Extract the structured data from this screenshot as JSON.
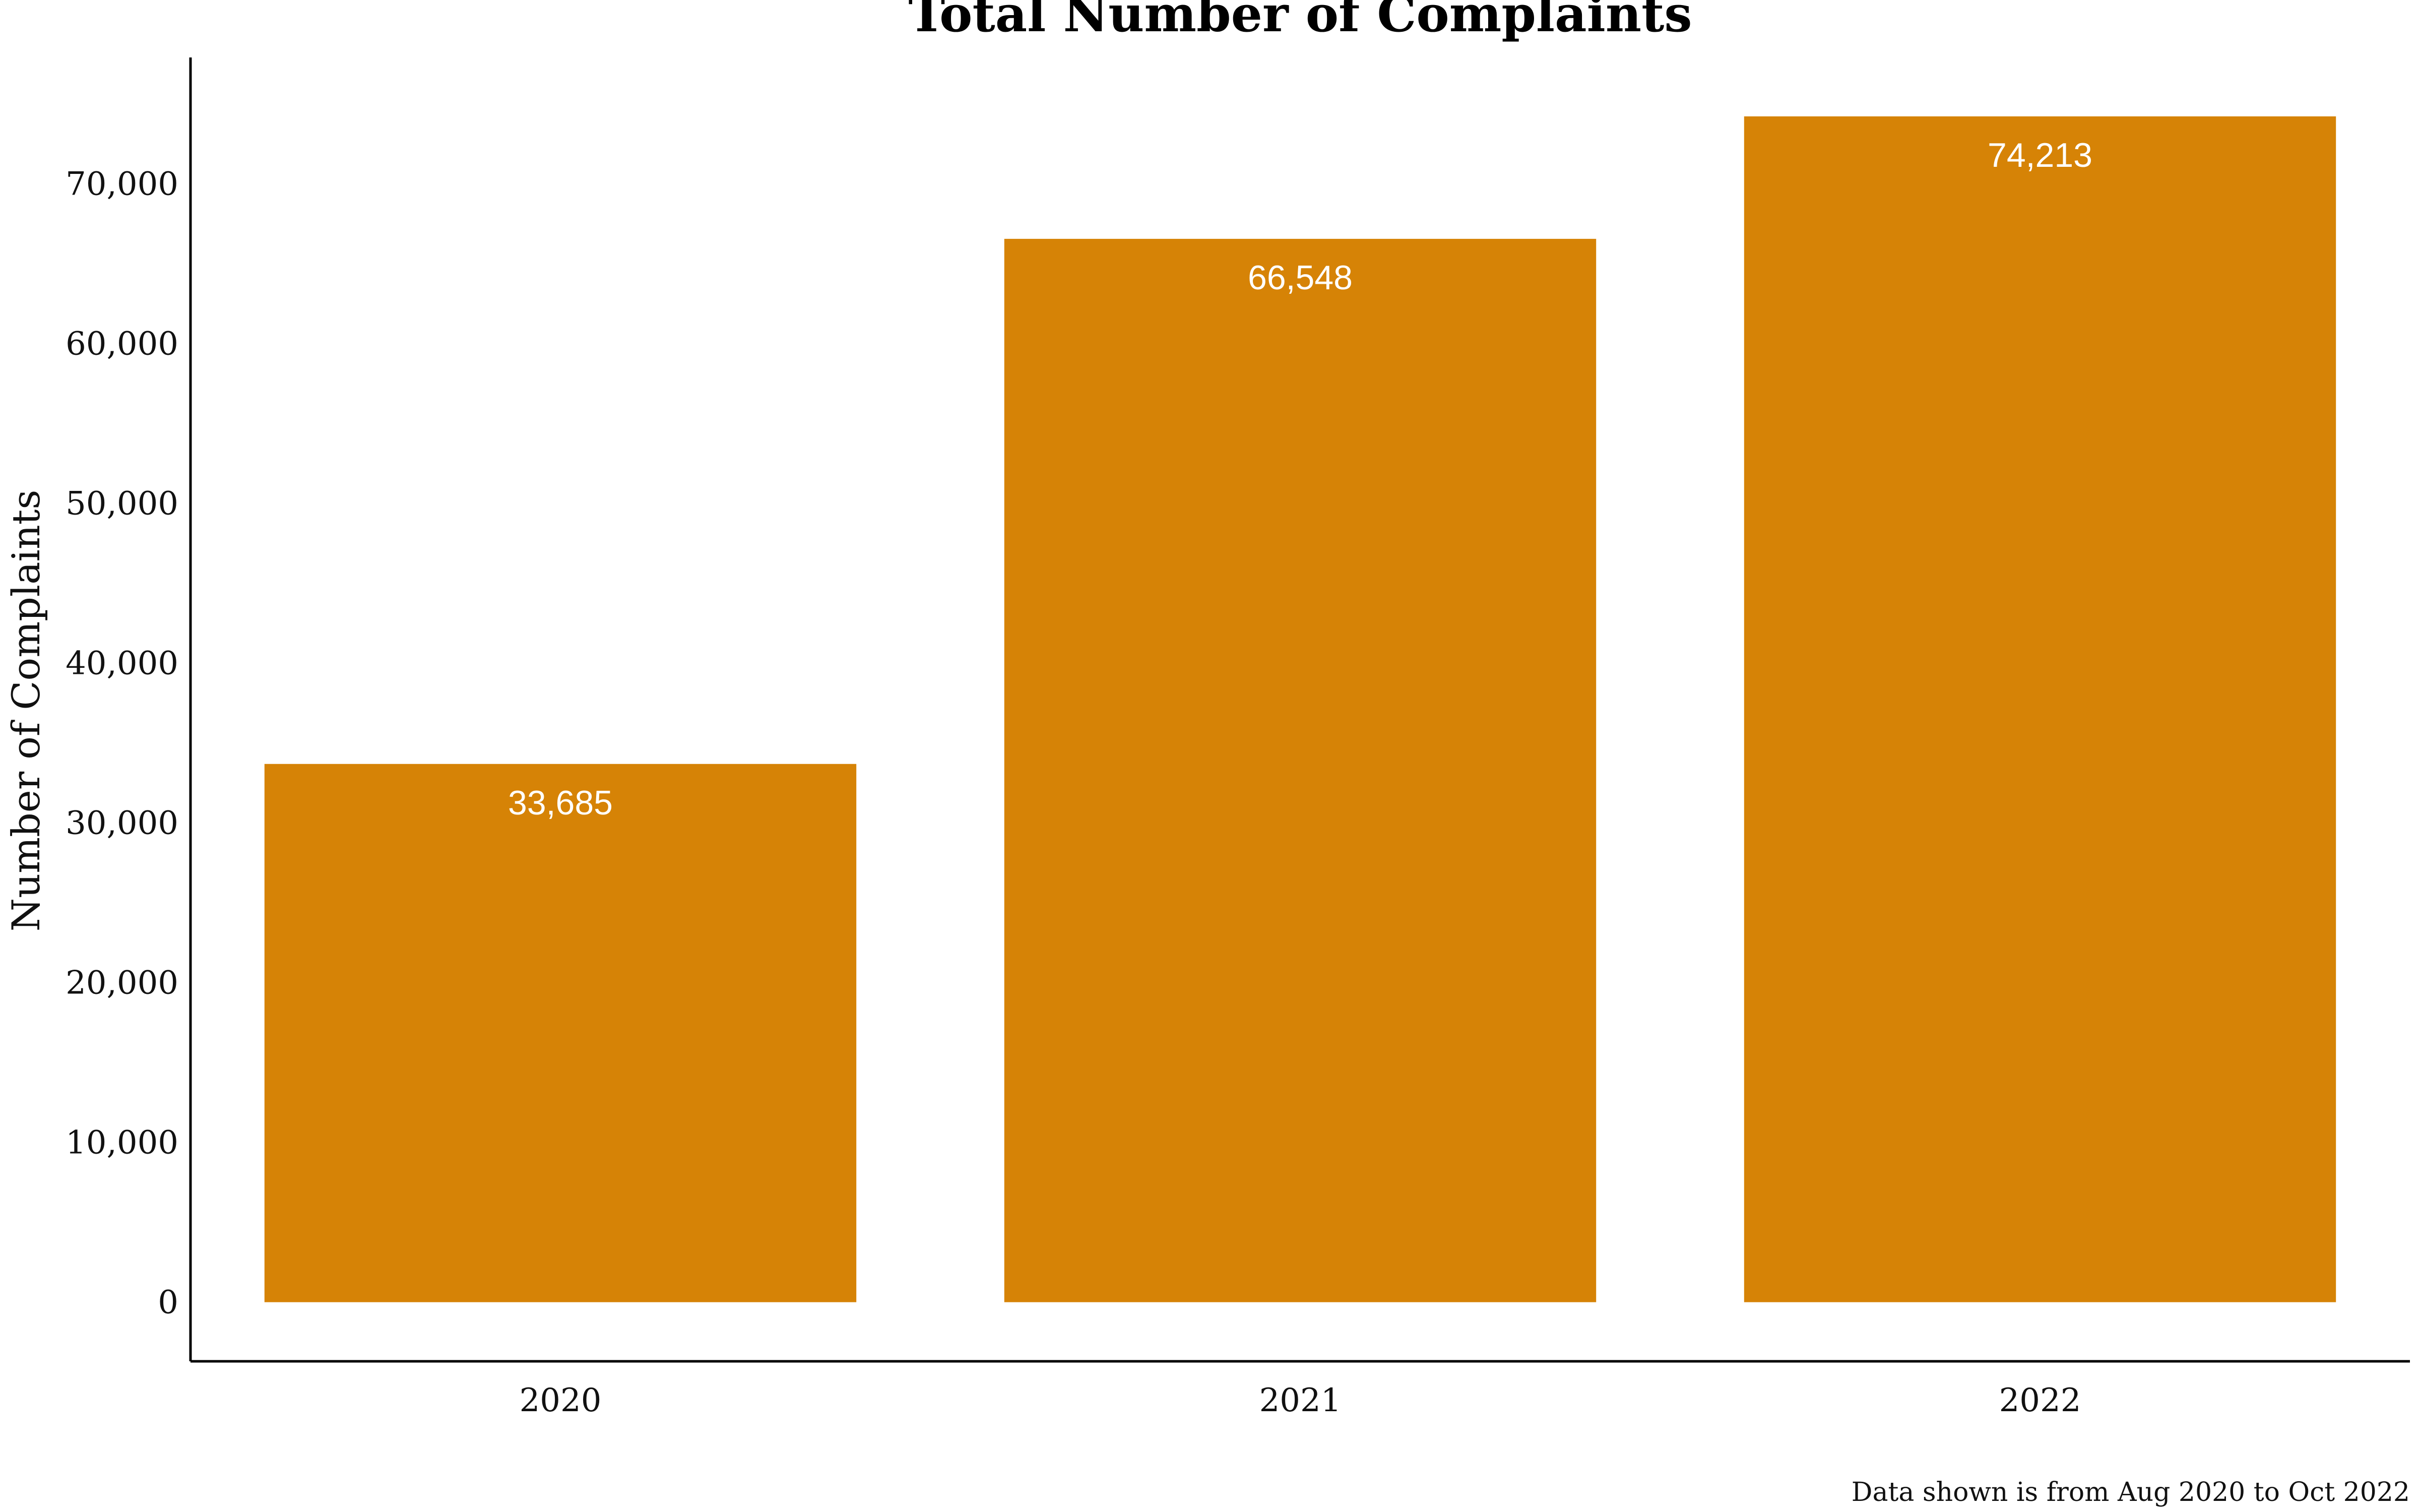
{
  "chart_data": {
    "type": "bar",
    "title": "Total Number of Complaints",
    "xlabel": "",
    "ylabel": "Number of Complaints",
    "categories": [
      "2020",
      "2021",
      "2022"
    ],
    "values": [
      33685,
      66548,
      74213
    ],
    "value_labels": [
      "33,685",
      "66,548",
      "74,213"
    ],
    "ylim": [
      -3700,
      77900
    ],
    "yticks": [
      0,
      10000,
      20000,
      30000,
      40000,
      50000,
      60000,
      70000
    ],
    "ytick_labels": [
      "0",
      "10,000",
      "20,000",
      "30,000",
      "40,000",
      "50,000",
      "60,000",
      "70,000"
    ],
    "grid": false,
    "legend": "none",
    "caption": "Data shown is from Aug 2020 to Oct 2022",
    "colors": {
      "bar": "#D68306",
      "bar_label": "#ffffff",
      "axis": "#000000"
    }
  }
}
